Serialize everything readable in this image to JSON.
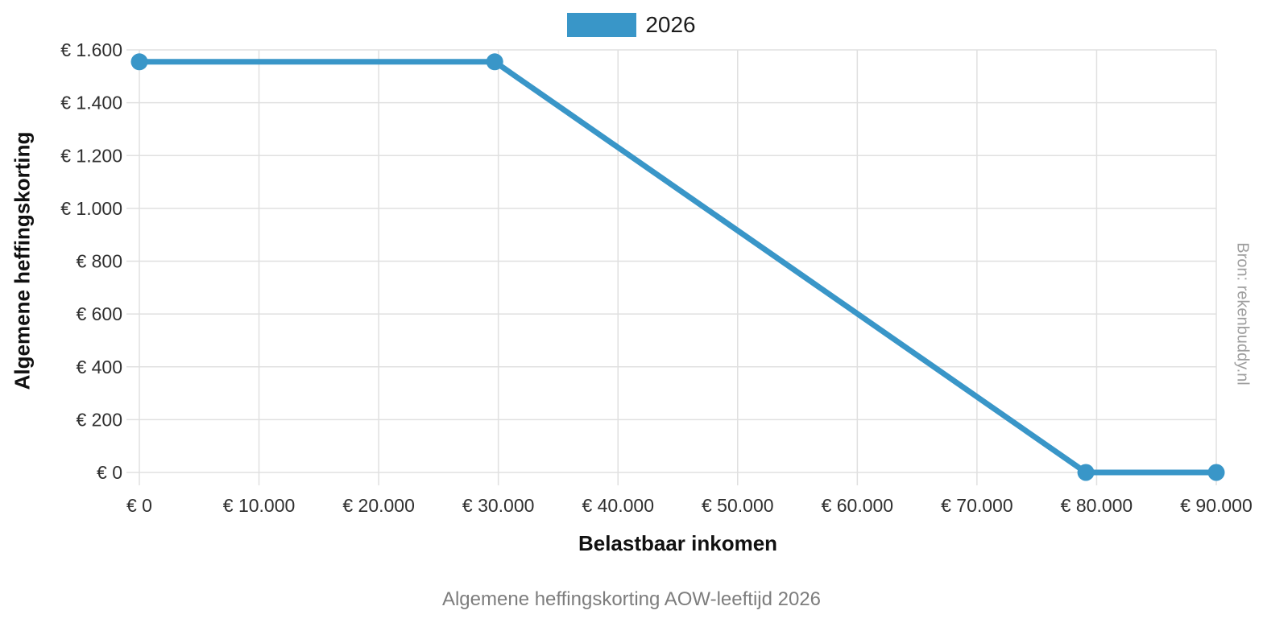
{
  "colors": {
    "accent": "#3996c8",
    "grid": "#e0e0e0",
    "tick_text": "#303030",
    "caption_text": "#7d7d7d",
    "source_text": "#9e9e9e",
    "background": "#ffffff"
  },
  "chart_data": {
    "type": "line",
    "title": "Algemene heffingskorting AOW-leeftijd 2026",
    "xlabel": "Belastbaar inkomen",
    "ylabel": "Algemene heffingskorting",
    "source": "Bron: rekenbuddy.nl",
    "legend_position": "top-center",
    "grid": true,
    "xlim": [
      0,
      90000
    ],
    "ylim": [
      0,
      1600
    ],
    "x_ticks": [
      {
        "value": 0,
        "label": "€ 0"
      },
      {
        "value": 10000,
        "label": "€ 10.000"
      },
      {
        "value": 20000,
        "label": "€ 20.000"
      },
      {
        "value": 30000,
        "label": "€ 30.000"
      },
      {
        "value": 40000,
        "label": "€ 40.000"
      },
      {
        "value": 50000,
        "label": "€ 50.000"
      },
      {
        "value": 60000,
        "label": "€ 60.000"
      },
      {
        "value": 70000,
        "label": "€ 70.000"
      },
      {
        "value": 80000,
        "label": "€ 80.000"
      },
      {
        "value": 90000,
        "label": "€ 90.000"
      }
    ],
    "y_ticks": [
      {
        "value": 0,
        "label": "€ 0"
      },
      {
        "value": 200,
        "label": "€ 200"
      },
      {
        "value": 400,
        "label": "€ 400"
      },
      {
        "value": 600,
        "label": "€ 600"
      },
      {
        "value": 800,
        "label": "€ 800"
      },
      {
        "value": 1000,
        "label": "€ 1.000"
      },
      {
        "value": 1200,
        "label": "€ 1.200"
      },
      {
        "value": 1400,
        "label": "€ 1.400"
      },
      {
        "value": 1600,
        "label": "€ 1.600"
      }
    ],
    "series": [
      {
        "name": "2026",
        "color": "#3996c8",
        "points": [
          {
            "x": 0,
            "y": 1555
          },
          {
            "x": 29700,
            "y": 1555
          },
          {
            "x": 79100,
            "y": 0
          },
          {
            "x": 90000,
            "y": 0
          }
        ]
      }
    ]
  }
}
